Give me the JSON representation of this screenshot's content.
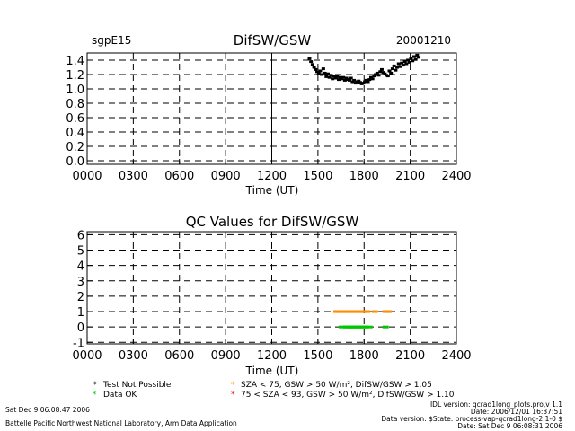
{
  "header": {
    "site": "sgpE15",
    "date": "20001210"
  },
  "chart_data": [
    {
      "type": "scatter",
      "title": "DifSW/GSW",
      "xlabel": "Time (UT)",
      "ylabel": "",
      "xlim": [
        0,
        2400
      ],
      "ylim": [
        -0.05,
        1.5
      ],
      "xticks": [
        "0000",
        "0300",
        "0600",
        "0900",
        "1200",
        "1500",
        "1800",
        "2100",
        "2400"
      ],
      "yticks": [
        "0.0",
        "0.2",
        "0.4",
        "0.6",
        "0.8",
        "1.0",
        "1.2",
        "1.4"
      ],
      "grid": true,
      "series": [
        {
          "color": "#000000",
          "x": [
            1445,
            1455,
            1465,
            1475,
            1485,
            1495,
            1505,
            1515,
            1525,
            1535,
            1545,
            1555,
            1565,
            1575,
            1585,
            1595,
            1605,
            1615,
            1625,
            1635,
            1645,
            1655,
            1665,
            1675,
            1685,
            1695,
            1705,
            1715,
            1725,
            1735,
            1745,
            1755,
            1765,
            1775,
            1785,
            1795,
            1805,
            1815,
            1825,
            1835,
            1845,
            1855,
            1865,
            1875,
            1885,
            1895,
            1905,
            1915,
            1925,
            1935,
            1945,
            1955,
            1965,
            1975,
            1985,
            1995,
            2005,
            2015,
            2025,
            2035,
            2045,
            2055,
            2065,
            2075,
            2085,
            2095,
            2105,
            2115,
            2125,
            2135,
            2145,
            2155
          ],
          "y": [
            1.42,
            1.38,
            1.34,
            1.3,
            1.27,
            1.24,
            1.22,
            1.25,
            1.2,
            1.28,
            1.22,
            1.17,
            1.21,
            1.16,
            1.19,
            1.14,
            1.18,
            1.15,
            1.17,
            1.13,
            1.16,
            1.14,
            1.16,
            1.12,
            1.15,
            1.13,
            1.12,
            1.15,
            1.1,
            1.12,
            1.08,
            1.1,
            1.11,
            1.09,
            1.07,
            1.08,
            1.1,
            1.12,
            1.1,
            1.13,
            1.16,
            1.14,
            1.18,
            1.2,
            1.22,
            1.19,
            1.24,
            1.27,
            1.23,
            1.21,
            1.19,
            1.18,
            1.25,
            1.22,
            1.28,
            1.32,
            1.26,
            1.3,
            1.35,
            1.31,
            1.36,
            1.33,
            1.38,
            1.35,
            1.4,
            1.37,
            1.42,
            1.39,
            1.45,
            1.41,
            1.47,
            1.44
          ]
        }
      ]
    },
    {
      "type": "scatter",
      "title": "QC Values for DifSW/GSW",
      "xlabel": "Time (UT)",
      "ylabel": "",
      "xlim": [
        0,
        2400
      ],
      "ylim": [
        -1.1,
        6.2
      ],
      "xticks": [
        "0000",
        "0300",
        "0600",
        "0900",
        "1200",
        "1500",
        "1800",
        "2100",
        "2400"
      ],
      "yticks": [
        "-1",
        "0",
        "1",
        "2",
        "3",
        "4",
        "5",
        "6"
      ],
      "grid": true,
      "series": [
        {
          "color": "#00c800",
          "x": [
            1655,
            1680,
            1690,
            1700,
            1710,
            1720,
            1730,
            1740,
            1750,
            1760,
            1770,
            1780,
            1790,
            1800,
            1810,
            1835,
            1940
          ],
          "y": [
            0,
            0,
            0,
            0,
            0,
            0,
            0,
            0,
            0,
            0,
            0,
            0,
            0,
            0,
            0,
            0,
            0
          ]
        },
        {
          "color": "#ff8c00",
          "x": [
            1620,
            1630,
            1640,
            1650,
            1660,
            1670,
            1680,
            1690,
            1700,
            1710,
            1720,
            1730,
            1740,
            1750,
            1760,
            1770,
            1780,
            1790,
            1800,
            1810,
            1820,
            1870,
            1940,
            1950,
            1960
          ],
          "y": [
            1,
            1,
            1,
            1,
            1,
            1,
            1,
            1,
            1,
            1,
            1,
            1,
            1,
            1,
            1,
            1,
            1,
            1,
            1,
            1,
            1,
            1,
            1,
            1,
            1
          ]
        }
      ]
    }
  ],
  "legend": [
    {
      "symbol": "*",
      "color": "#000000",
      "label": "Test Not Possible"
    },
    {
      "symbol": "*",
      "color": "#00c800",
      "label": "Data OK"
    },
    {
      "symbol": "*",
      "color": "#ff8c00",
      "label": "SZA < 75, GSW > 50 W/m², DifSW/GSW > 1.05"
    },
    {
      "symbol": "*",
      "color": "#ff0000",
      "label": "75 < SZA < 93, GSW > 50 W/m², DifSW/GSW > 1.10"
    }
  ],
  "footer": {
    "run_date": "Sat Dec  9 06:08:47 2006",
    "lab": "Battelle Pacific Northwest National Laboratory, Arm Data Application",
    "idl_version": "IDL version: qcrad1long_plots.pro,v 1.1",
    "idl_date": "Date: 2006/12/01 16:37:51",
    "data_version": "Data version: $State: process-vap-qcrad1long-2.1-0 $",
    "data_date": "Date: Sat Dec  9 06:08:31 2006"
  }
}
